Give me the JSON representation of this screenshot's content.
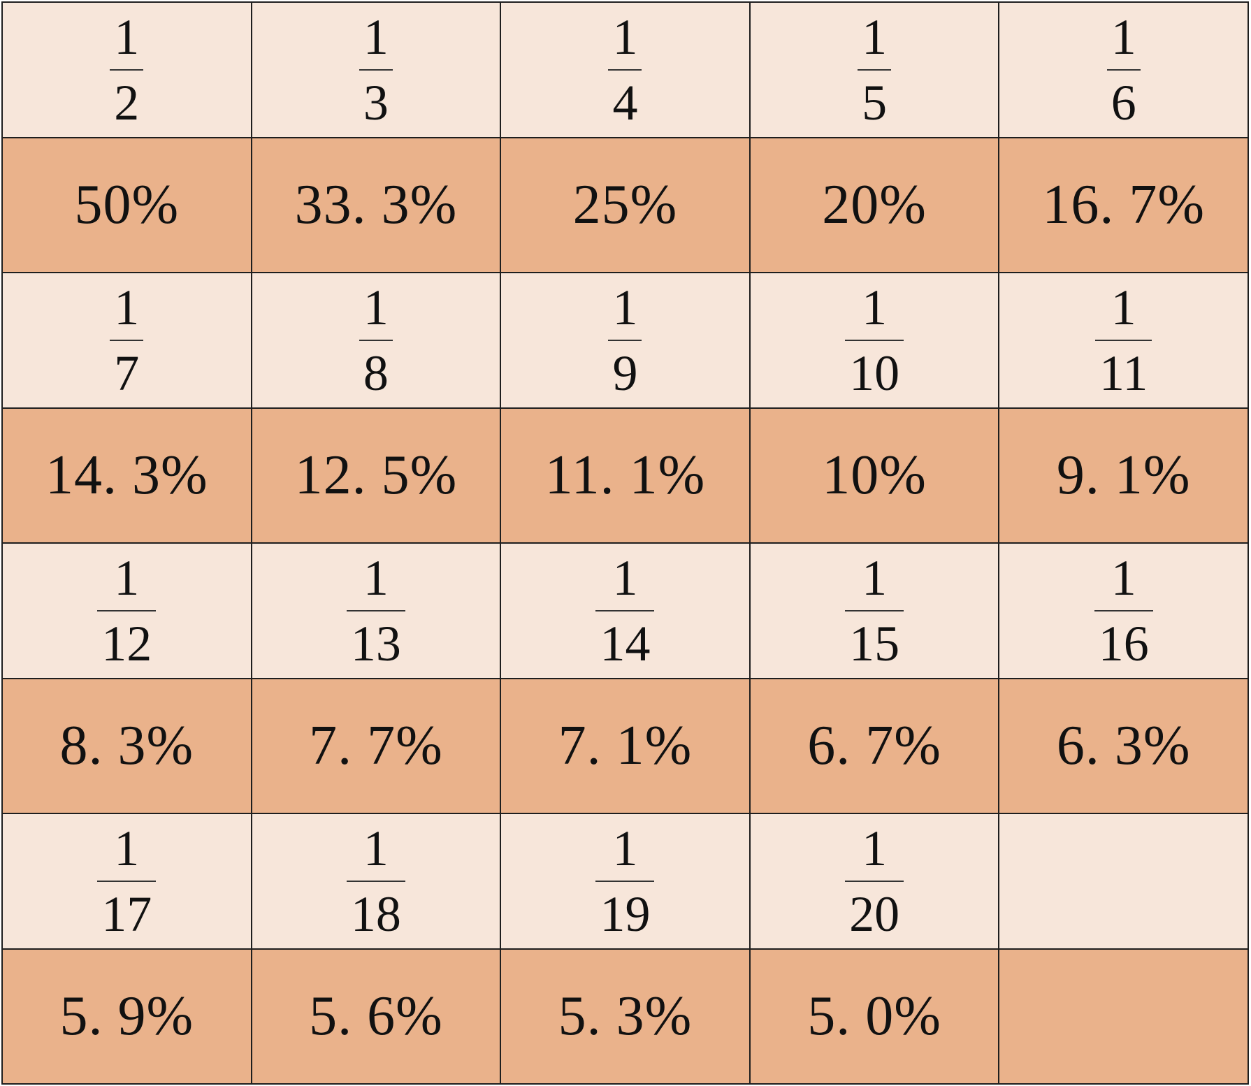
{
  "colors": {
    "fraction_row_bg": "#f7e6da",
    "percent_row_bg": "#eab28b",
    "border": "#1e1e1e",
    "text": "#111111"
  },
  "table": {
    "rows": [
      {
        "kind": "fraction",
        "cells": [
          {
            "num": "1",
            "den": "2"
          },
          {
            "num": "1",
            "den": "3"
          },
          {
            "num": "1",
            "den": "4"
          },
          {
            "num": "1",
            "den": "5"
          },
          {
            "num": "1",
            "den": "6"
          }
        ]
      },
      {
        "kind": "percent",
        "cells": [
          "50%",
          "33. 3%",
          "25%",
          "20%",
          "16. 7%"
        ]
      },
      {
        "kind": "fraction",
        "cells": [
          {
            "num": "1",
            "den": "7"
          },
          {
            "num": "1",
            "den": "8"
          },
          {
            "num": "1",
            "den": "9"
          },
          {
            "num": "1",
            "den": "10"
          },
          {
            "num": "1",
            "den": "11"
          }
        ]
      },
      {
        "kind": "percent",
        "cells": [
          "14. 3%",
          "12. 5%",
          "11. 1%",
          "10%",
          "9. 1%"
        ]
      },
      {
        "kind": "fraction",
        "cells": [
          {
            "num": "1",
            "den": "12"
          },
          {
            "num": "1",
            "den": "13"
          },
          {
            "num": "1",
            "den": "14"
          },
          {
            "num": "1",
            "den": "15"
          },
          {
            "num": "1",
            "den": "16"
          }
        ]
      },
      {
        "kind": "percent",
        "cells": [
          "8. 3%",
          "7. 7%",
          "7. 1%",
          "6. 7%",
          "6. 3%"
        ]
      },
      {
        "kind": "fraction",
        "cells": [
          {
            "num": "1",
            "den": "17"
          },
          {
            "num": "1",
            "den": "18"
          },
          {
            "num": "1",
            "den": "19"
          },
          {
            "num": "1",
            "den": "20"
          },
          {
            "num": "",
            "den": ""
          }
        ]
      },
      {
        "kind": "percent",
        "cells": [
          "5. 9%",
          "5. 6%",
          "5. 3%",
          "5. 0%",
          ""
        ]
      }
    ]
  }
}
